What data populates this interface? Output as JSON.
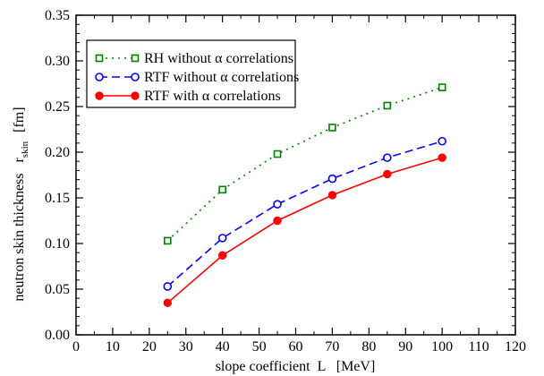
{
  "chart_data": {
    "type": "line",
    "title": "",
    "xlabel": "slope coefficient  L   [MeV]",
    "ylabel": "neutron skin thickness   r",
    "ylabel_sub": "skin",
    "ylabel_unit": "[fm]",
    "xlim": [
      0,
      120
    ],
    "ylim": [
      0,
      0.35
    ],
    "x_ticks": [
      0,
      10,
      20,
      30,
      40,
      50,
      60,
      70,
      80,
      90,
      100,
      110,
      120
    ],
    "y_ticks": [
      0.0,
      0.05,
      0.1,
      0.15,
      0.2,
      0.25,
      0.3,
      0.35
    ],
    "x_tick_labels": [
      "0",
      "10",
      "20",
      "30",
      "40",
      "50",
      "60",
      "70",
      "80",
      "90",
      "100",
      "110",
      "120"
    ],
    "y_tick_labels": [
      "0.00",
      "0.05",
      "0.10",
      "0.15",
      "0.20",
      "0.25",
      "0.30",
      "0.35"
    ],
    "grid": false,
    "legend_position": "top-left",
    "x": [
      25,
      40,
      55,
      70,
      85,
      100
    ],
    "series": [
      {
        "name": "RH without α correlations",
        "values": [
          0.103,
          0.159,
          0.198,
          0.227,
          0.251,
          0.271
        ],
        "color": "#008000",
        "line_style": "dotted",
        "marker": "open-square"
      },
      {
        "name": "RTF without α correlations",
        "values": [
          0.053,
          0.106,
          0.143,
          0.171,
          0.194,
          0.212
        ],
        "color": "#0000ff",
        "line_style": "dashed",
        "marker": "open-circle"
      },
      {
        "name": "RTF with α correlations",
        "values": [
          0.035,
          0.087,
          0.125,
          0.153,
          0.176,
          0.194
        ],
        "color": "#ff0000",
        "line_style": "solid",
        "marker": "filled-circle"
      }
    ]
  }
}
